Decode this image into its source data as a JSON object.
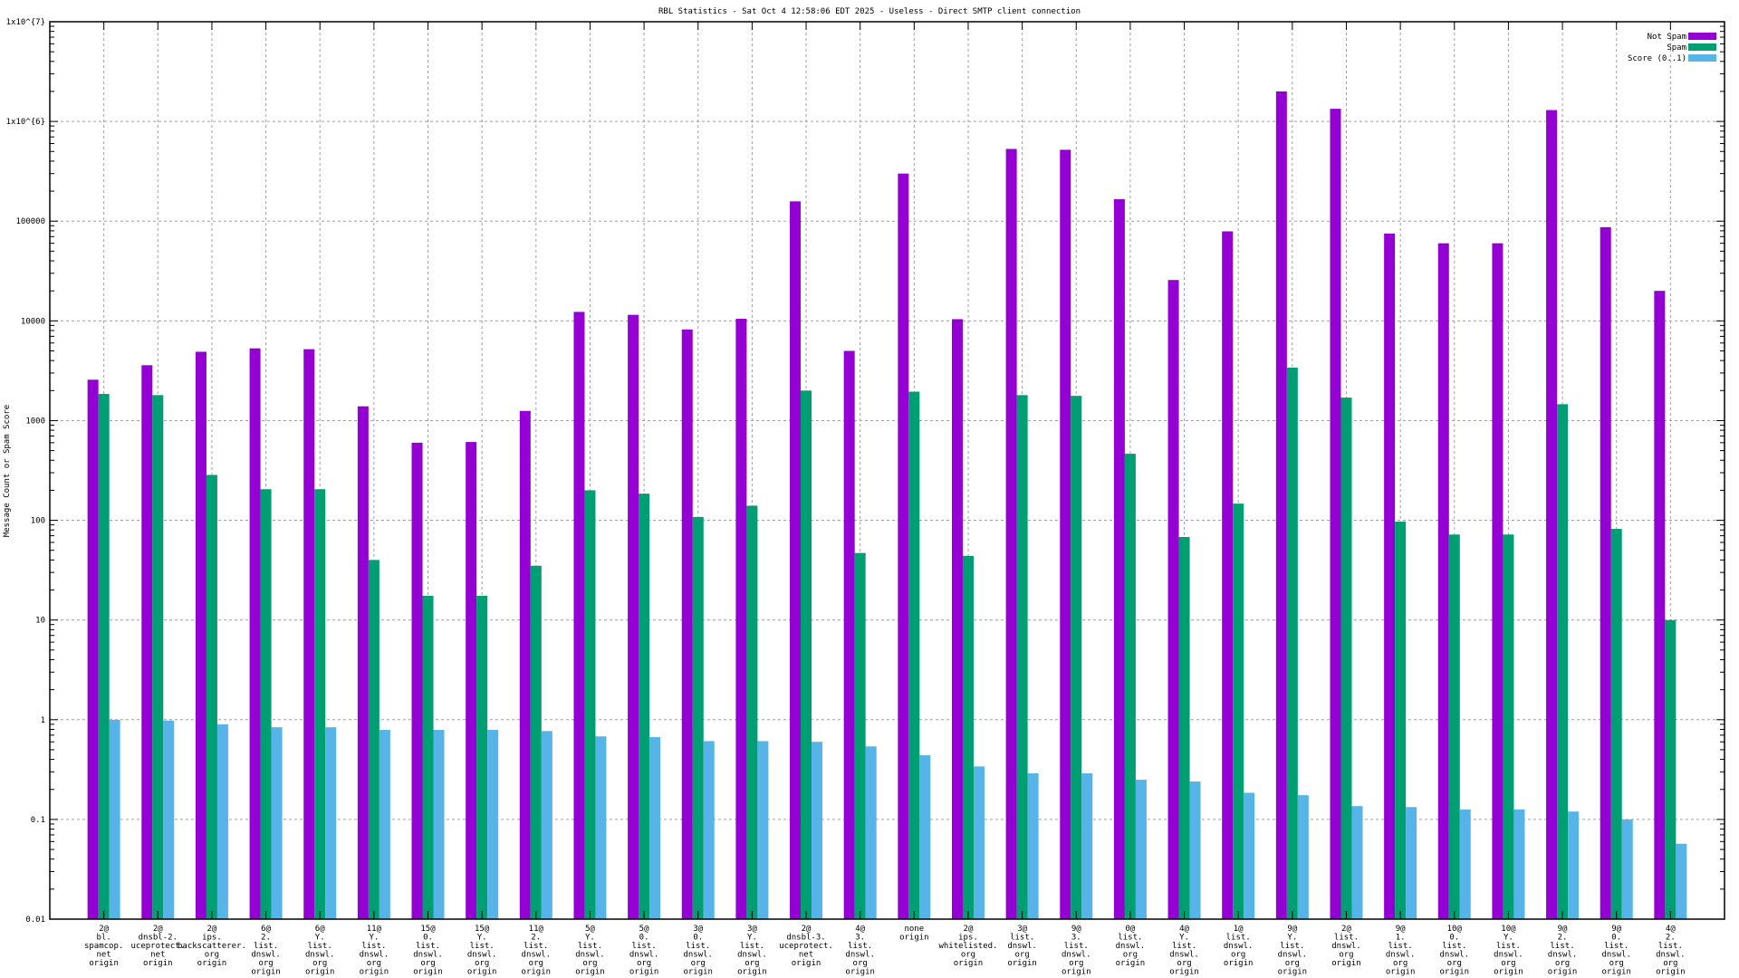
{
  "chart_data": {
    "type": "bar",
    "title": "RBL Statistics - Sat Oct  4 12:58:06 EDT 2025 - Useless - Direct SMTP client connection",
    "xlabel": "",
    "ylabel": "Message Count or Spam Score",
    "yscale": "log",
    "ylim": [
      0.01,
      10000000
    ],
    "ytick_labels": [
      "0.01",
      "0.1",
      "1",
      "10",
      "100",
      "1000",
      "10000",
      "100000",
      "1x10^{6}",
      "1x10^{7}"
    ],
    "grid": true,
    "legend_position": "top-right",
    "categories": [
      [
        "2@",
        "bl.",
        "spamcop.",
        "net",
        "origin"
      ],
      [
        "2@",
        "dnsbl-2.",
        "uceprotect.",
        "net",
        "origin"
      ],
      [
        "2@",
        "ips.",
        "backscatterer.",
        "org",
        "origin"
      ],
      [
        "6@",
        "2.",
        "list.",
        "dnswl.",
        "org",
        "origin"
      ],
      [
        "6@",
        "Y.",
        "list.",
        "dnswl.",
        "org",
        "origin"
      ],
      [
        "11@",
        "Y.",
        "list.",
        "dnswl.",
        "org",
        "origin"
      ],
      [
        "15@",
        "0.",
        "list.",
        "dnswl.",
        "org",
        "origin"
      ],
      [
        "15@",
        "Y.",
        "list.",
        "dnswl.",
        "org",
        "origin"
      ],
      [
        "11@",
        "2.",
        "list.",
        "dnswl.",
        "org",
        "origin"
      ],
      [
        "5@",
        "Y.",
        "list.",
        "dnswl.",
        "org",
        "origin"
      ],
      [
        "5@",
        "0.",
        "list.",
        "dnswl.",
        "org",
        "origin"
      ],
      [
        "3@",
        "0.",
        "list.",
        "dnswl.",
        "org",
        "origin"
      ],
      [
        "3@",
        "Y.",
        "list.",
        "dnswl.",
        "org",
        "origin"
      ],
      [
        "2@",
        "dnsbl-3.",
        "uceprotect.",
        "net",
        "origin"
      ],
      [
        "4@",
        "3.",
        "list.",
        "dnswl.",
        "org",
        "origin"
      ],
      [
        "none",
        "origin"
      ],
      [
        "2@",
        "ips.",
        "whitelisted.",
        "org",
        "origin"
      ],
      [
        "3@",
        "list.",
        "dnswl.",
        "org",
        "origin"
      ],
      [
        "9@",
        "3.",
        "list.",
        "dnswl.",
        "org",
        "origin"
      ],
      [
        "0@",
        "list.",
        "dnswl.",
        "org",
        "origin"
      ],
      [
        "4@",
        "Y.",
        "list.",
        "dnswl.",
        "org",
        "origin"
      ],
      [
        "1@",
        "list.",
        "dnswl.",
        "org",
        "origin"
      ],
      [
        "9@",
        "Y.",
        "list.",
        "dnswl.",
        "org",
        "origin"
      ],
      [
        "2@",
        "list.",
        "dnswl.",
        "org",
        "origin"
      ],
      [
        "9@",
        "1.",
        "list.",
        "dnswl.",
        "org",
        "origin"
      ],
      [
        "10@",
        "0.",
        "list.",
        "dnswl.",
        "org",
        "origin"
      ],
      [
        "10@",
        "Y.",
        "list.",
        "dnswl.",
        "org",
        "origin"
      ],
      [
        "9@",
        "2.",
        "list.",
        "dnswl.",
        "org",
        "origin"
      ],
      [
        "9@",
        "0.",
        "list.",
        "dnswl.",
        "org",
        "origin"
      ],
      [
        "4@",
        "2.",
        "list.",
        "dnswl.",
        "org",
        "origin"
      ]
    ],
    "series": [
      {
        "name": "Not Spam",
        "color": "#9400d3",
        "values": [
          2570,
          3590,
          4900,
          5300,
          5200,
          1390,
          600,
          610,
          1250,
          12300,
          11500,
          8200,
          10500,
          158000,
          5000,
          300000,
          10400,
          530000,
          520000,
          166000,
          25700,
          79000,
          2000000,
          1340000,
          75000,
          60000,
          60000,
          1300000,
          87000,
          20000
        ]
      },
      {
        "name": "Spam",
        "color": "#009e73",
        "values": [
          1850,
          1800,
          285,
          205,
          205,
          40,
          17.5,
          17.5,
          35,
          200,
          185,
          108,
          140,
          2000,
          47,
          1950,
          44,
          1800,
          1770,
          465,
          68,
          147,
          3400,
          1700,
          97,
          72,
          72,
          1460,
          82,
          10
        ]
      },
      {
        "name": "Score (0..1)",
        "color": "#56b4e9",
        "values": [
          1.0,
          0.98,
          0.9,
          0.84,
          0.84,
          0.79,
          0.79,
          0.79,
          0.77,
          0.68,
          0.67,
          0.61,
          0.61,
          0.6,
          0.54,
          0.44,
          0.34,
          0.29,
          0.29,
          0.25,
          0.24,
          0.185,
          0.175,
          0.136,
          0.133,
          0.126,
          0.126,
          0.12,
          0.1,
          0.057
        ]
      }
    ]
  }
}
